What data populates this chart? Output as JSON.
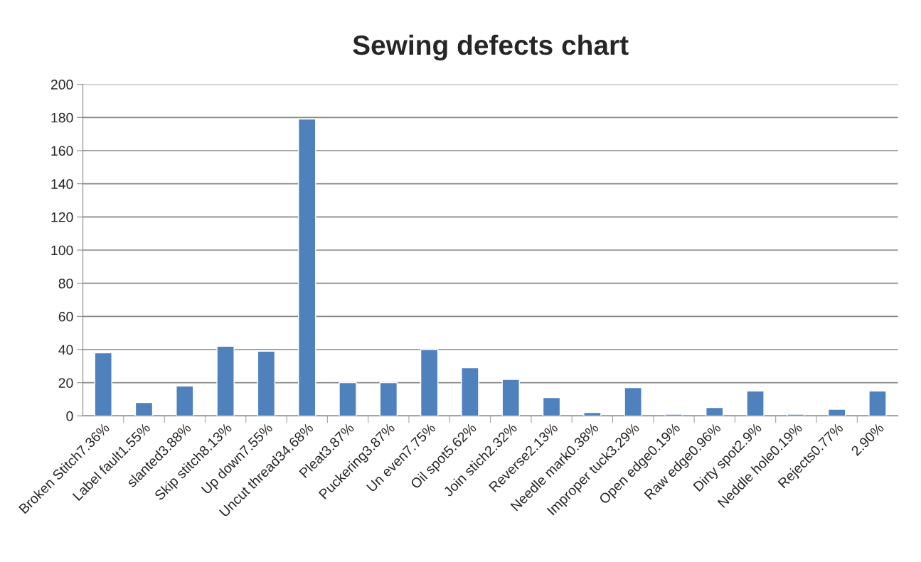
{
  "chart_data": {
    "type": "bar",
    "title": "Sewing defects chart",
    "categories": [
      "Broken Stitch7.36%",
      "Label fault1.55%",
      "slanted3.88%",
      "Skip stitch8.13%",
      "Up down7.55%",
      "Uncut thread34.68%",
      "Pleat3.87%",
      "Puckering3.87%",
      "Un even7.75%",
      "Oil spot5.62%",
      "Join stich2.32%",
      "Reverse2.13%",
      "Needle mark0.38%",
      "Improper tuck3.29%",
      "Open edge0.19%",
      "Raw edge0.96%",
      "Dirty spot2.9%",
      "Neddle hole0.19%",
      "Rejects0.77%",
      "2.90%"
    ],
    "values": [
      38,
      8,
      18,
      42,
      39,
      179,
      20,
      20,
      40,
      29,
      22,
      11,
      2,
      17,
      1,
      5,
      15,
      1,
      4,
      15
    ],
    "color": "#4f81bd",
    "ylim": [
      0,
      200
    ],
    "yticks": [
      0,
      20,
      40,
      60,
      80,
      100,
      120,
      140,
      160,
      180,
      200
    ],
    "grid": "y"
  }
}
